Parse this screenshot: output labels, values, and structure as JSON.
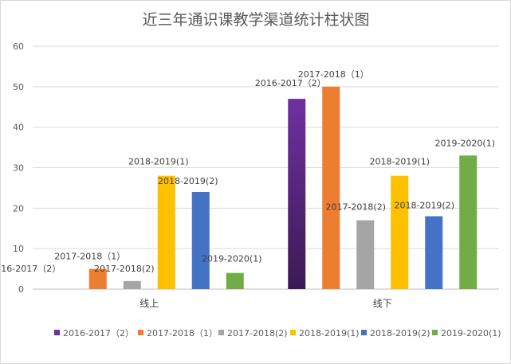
{
  "chart_data": {
    "type": "bar",
    "title": "近三年通识课教学渠道统计柱状图",
    "categories": [
      "线上",
      "线下"
    ],
    "ylim": [
      0,
      60
    ],
    "yticks": [
      0,
      10,
      20,
      30,
      40,
      50,
      60
    ],
    "grid": true,
    "legend_position": "bottom",
    "series": [
      {
        "name": "2016-2017（2）",
        "label": "2016-2017（2）",
        "color": "#7030A0",
        "gradient_end": "#3C1A55",
        "values": [
          0,
          47
        ]
      },
      {
        "name": "2017-2018（1）",
        "label": "2017-2018（1）",
        "color": "#ED7D31",
        "values": [
          5,
          50
        ]
      },
      {
        "name": "2017-2018(2)",
        "label": "2017-2018(2)",
        "color": "#A5A5A5",
        "values": [
          2,
          17
        ]
      },
      {
        "name": "2018-2019(1)",
        "label": "2018-2019(1)",
        "color": "#FFC000",
        "values": [
          28,
          28
        ]
      },
      {
        "name": "2018-2019(2)",
        "label": "2018-2019(2)",
        "color": "#4472C4",
        "values": [
          24,
          18
        ]
      },
      {
        "name": "2019-2020(1)",
        "label": "2019-2020(1)",
        "color": "#70AD47",
        "values": [
          4,
          33
        ]
      }
    ]
  }
}
